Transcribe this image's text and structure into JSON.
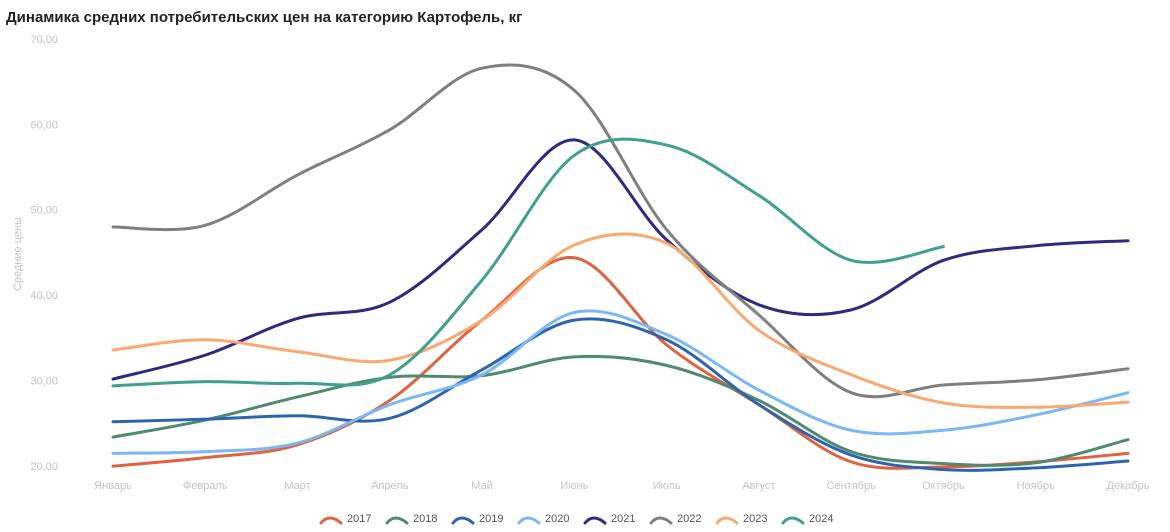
{
  "chart_data": {
    "type": "line",
    "title": "Динамика средних потребительских цен на категорию Картофель, кг",
    "y_label": "Средние цены",
    "categories": [
      "Январь",
      "Февраль",
      "Март",
      "Апрель",
      "Май",
      "Июнь",
      "Июль",
      "Август",
      "Сентябрь",
      "Октябрь",
      "Ноябрь",
      "Декабрь"
    ],
    "ylim": [
      20,
      70
    ],
    "yticks": [
      {
        "value": 20,
        "label": "20,00"
      },
      {
        "value": 30,
        "label": "30,00"
      },
      {
        "value": 40,
        "label": "40,00"
      },
      {
        "value": 50,
        "label": "50,00"
      },
      {
        "value": 60,
        "label": "60,00"
      },
      {
        "value": 70,
        "label": "70,00"
      }
    ],
    "grid": false,
    "legend": "bottom",
    "series": [
      {
        "name": "2017",
        "color": "#e0623f",
        "values": [
          20.1,
          21.1,
          22.6,
          27.8,
          37.2,
          44.5,
          34.3,
          27.3,
          20.6,
          20.0,
          20.6,
          21.6
        ]
      },
      {
        "name": "2018",
        "color": "#4f8a6e",
        "values": [
          23.5,
          25.5,
          28.2,
          30.5,
          30.7,
          32.9,
          31.9,
          27.8,
          21.8,
          20.4,
          20.5,
          23.2
        ]
      },
      {
        "name": "2019",
        "color": "#2e64ae",
        "values": [
          25.3,
          25.6,
          26.0,
          25.7,
          31.4,
          37.2,
          34.9,
          27.3,
          21.4,
          19.7,
          19.9,
          20.7
        ]
      },
      {
        "name": "2020",
        "color": "#7ab8f5",
        "values": [
          21.6,
          21.8,
          22.8,
          27.3,
          30.8,
          38.1,
          35.5,
          29.0,
          24.3,
          24.3,
          26.1,
          28.7
        ]
      },
      {
        "name": "2021",
        "color": "#2e2a7e",
        "values": [
          30.3,
          33.1,
          37.4,
          39.3,
          47.8,
          58.3,
          46.6,
          39.0,
          38.4,
          44.2,
          45.9,
          46.5
        ]
      },
      {
        "name": "2022",
        "color": "#7f7f7f",
        "values": [
          48.1,
          48.3,
          54.2,
          59.5,
          66.7,
          64.1,
          47.8,
          37.8,
          28.7,
          29.6,
          30.2,
          31.5
        ]
      },
      {
        "name": "2023",
        "color": "#f8a870",
        "values": [
          33.7,
          34.9,
          33.5,
          32.5,
          37.2,
          46.0,
          46.2,
          36.0,
          30.8,
          27.5,
          27.0,
          27.6
        ]
      },
      {
        "name": "2024",
        "color": "#3fa08f",
        "values": [
          29.5,
          30.0,
          29.8,
          30.8,
          41.9,
          56.5,
          57.7,
          51.8,
          44.2,
          45.8,
          null,
          null
        ]
      }
    ]
  }
}
